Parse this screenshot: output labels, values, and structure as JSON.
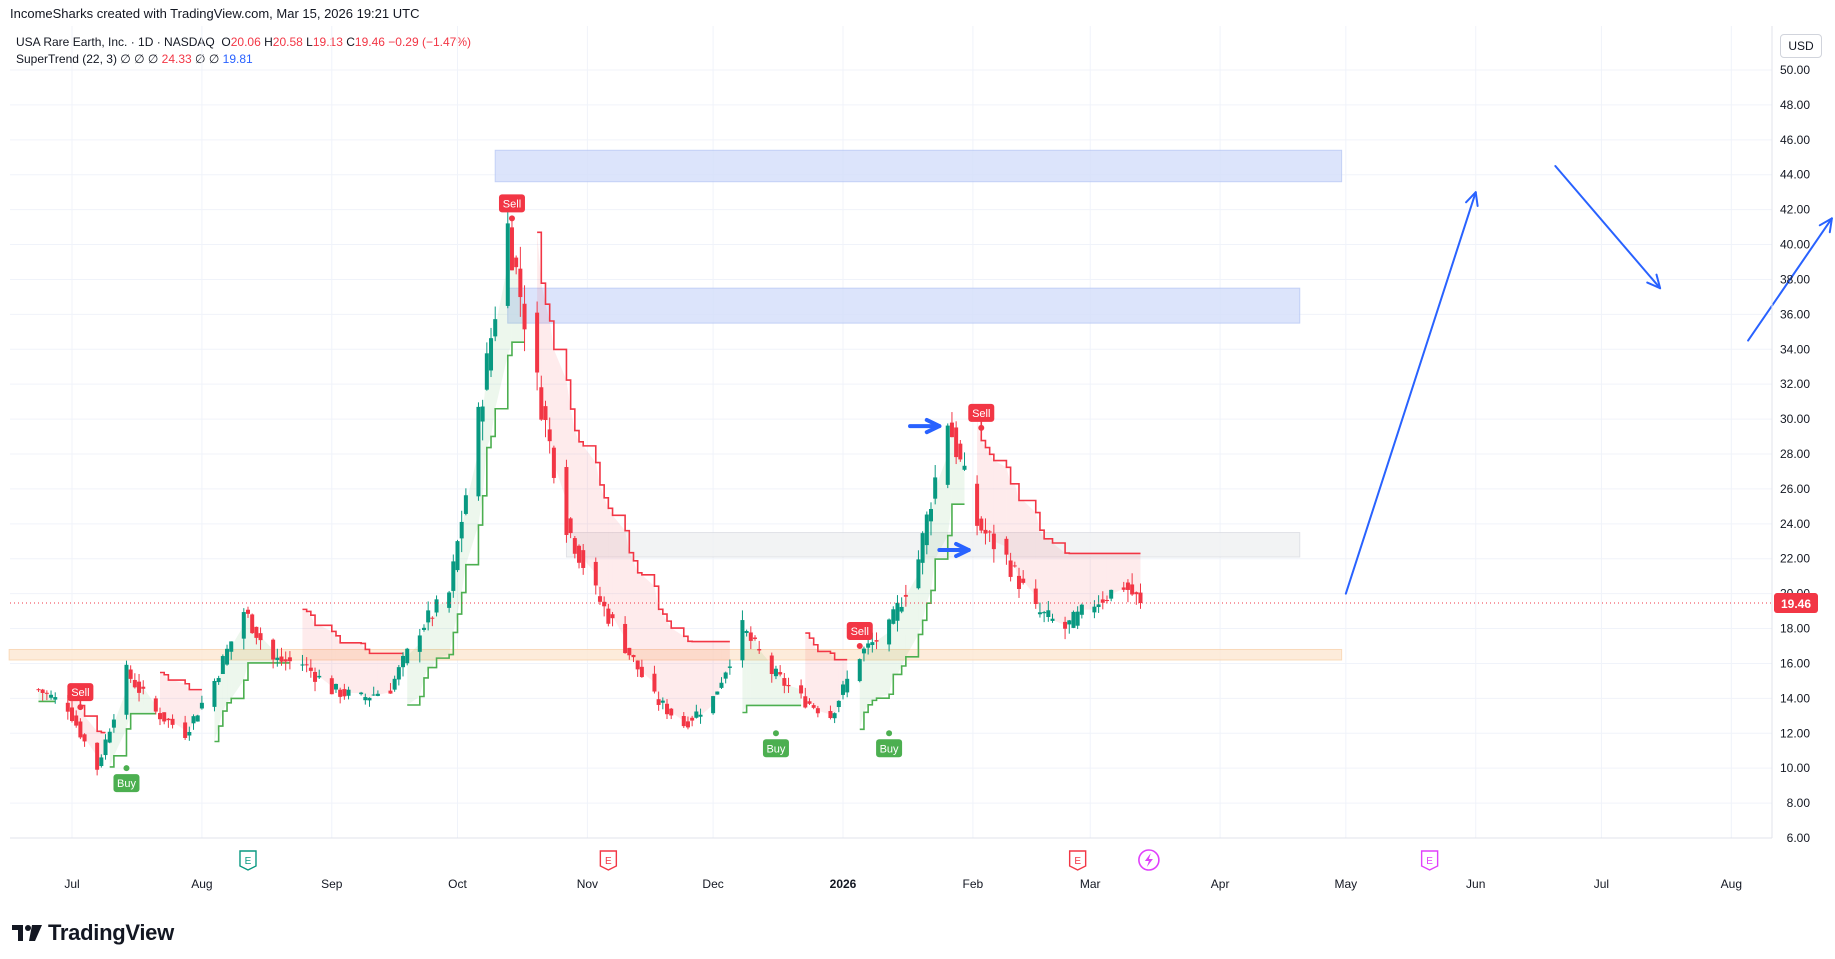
{
  "header": {
    "credit": "IncomeSharks created with TradingView.com, Mar 15, 2026 19:21 UTC"
  },
  "legend": {
    "symbol": "USA Rare Earth, Inc. · 1D · NASDAQ",
    "o_label": "O",
    "o_val": "20.06",
    "h_label": "H",
    "h_val": "20.58",
    "l_label": "L",
    "l_val": "19.13",
    "c_label": "C",
    "c_val": "19.46",
    "change": "−0.29 (−1.47%)",
    "indicator": "SuperTrend (22, 3)",
    "ind_empty": "∅ ∅ ∅",
    "ind_val1": "24.33",
    "ind_empty2": "∅ ∅",
    "ind_val2": "19.81"
  },
  "currency_button": "USD",
  "brand": "TradingView",
  "colors": {
    "up": "#089981",
    "down": "#f23645",
    "supertrend_up": "#4caf50",
    "supertrend_down": "#f23645",
    "arrow": "#2962ff",
    "zone_blue": "#d6e0fb",
    "zone_grey": "#f0f1f3",
    "zone_orange": "#fde9d5",
    "grid": "#f0f3fa",
    "price_line": "#f23645"
  },
  "chart_data": {
    "type": "candlestick",
    "title": "USA Rare Earth, Inc. · 1D · NASDAQ",
    "y_axis": {
      "ticks": [
        "50.00",
        "48.00",
        "46.00",
        "44.00",
        "42.00",
        "40.00",
        "38.00",
        "36.00",
        "34.00",
        "32.00",
        "30.00",
        "28.00",
        "26.00",
        "24.00",
        "22.00",
        "20.00",
        "18.00",
        "16.00",
        "14.00",
        "12.00",
        "10.00",
        "8.00",
        "6.00"
      ],
      "range": [
        5.2,
        51.5
      ],
      "current_price_label": "19.46",
      "current_price": 19.46
    },
    "x_axis": {
      "labels": [
        "Jul",
        "Aug",
        "Sep",
        "Oct",
        "Nov",
        "Dec",
        "2026",
        "Feb",
        "Mar",
        "Apr",
        "May",
        "Jun",
        "Jul",
        "Aug"
      ],
      "bold_labels": [
        "2026"
      ]
    },
    "candles_daily_close_approx": [
      {
        "date": "2025-06-23",
        "close": 14.5
      },
      {
        "date": "2025-06-30",
        "close": 13.5
      },
      {
        "date": "2025-07-07",
        "close": 10.0
      },
      {
        "date": "2025-07-14",
        "close": 15.5
      },
      {
        "date": "2025-07-21",
        "close": 13.2
      },
      {
        "date": "2025-07-28",
        "close": 12.0
      },
      {
        "date": "2025-08-04",
        "close": 15.0
      },
      {
        "date": "2025-08-11",
        "close": 19.0
      },
      {
        "date": "2025-08-18",
        "close": 16.2
      },
      {
        "date": "2025-08-25",
        "close": 16.0
      },
      {
        "date": "2025-09-01",
        "close": 14.5
      },
      {
        "date": "2025-09-08",
        "close": 14.0
      },
      {
        "date": "2025-09-15",
        "close": 14.6
      },
      {
        "date": "2025-09-22",
        "close": 18.0
      },
      {
        "date": "2025-09-29",
        "close": 20.0
      },
      {
        "date": "2025-10-06",
        "close": 30.0
      },
      {
        "date": "2025-10-13",
        "close": 41.0
      },
      {
        "date": "2025-10-20",
        "close": 32.0
      },
      {
        "date": "2025-10-27",
        "close": 24.0
      },
      {
        "date": "2025-11-03",
        "close": 20.0
      },
      {
        "date": "2025-11-10",
        "close": 17.0
      },
      {
        "date": "2025-11-17",
        "close": 14.0
      },
      {
        "date": "2025-11-24",
        "close": 12.5
      },
      {
        "date": "2025-12-01",
        "close": 14.0
      },
      {
        "date": "2025-12-08",
        "close": 18.0
      },
      {
        "date": "2025-12-15",
        "close": 15.5
      },
      {
        "date": "2025-12-22",
        "close": 14.0
      },
      {
        "date": "2025-12-29",
        "close": 13.0
      },
      {
        "date": "2026-01-05",
        "close": 16.5
      },
      {
        "date": "2026-01-12",
        "close": 18.0
      },
      {
        "date": "2026-01-19",
        "close": 22.0
      },
      {
        "date": "2026-01-26",
        "close": 30.0
      },
      {
        "date": "2026-02-02",
        "close": 24.0
      },
      {
        "date": "2026-02-09",
        "close": 22.0
      },
      {
        "date": "2026-02-16",
        "close": 19.0
      },
      {
        "date": "2026-02-23",
        "close": 18.0
      },
      {
        "date": "2026-03-02",
        "close": 19.5
      },
      {
        "date": "2026-03-09",
        "close": 20.5
      },
      {
        "date": "2026-03-13",
        "close": 19.46
      }
    ],
    "supertrend_signals": [
      {
        "label": "Sell",
        "date": "2025-07-03",
        "price": 13.5
      },
      {
        "label": "Buy",
        "date": "2025-07-14",
        "price": 10.0
      },
      {
        "label": "Sell",
        "date": "2025-10-14",
        "price": 41.5
      },
      {
        "label": "Buy",
        "date": "2025-12-16",
        "price": 12.0
      },
      {
        "label": "Sell",
        "date": "2026-01-05",
        "price": 17.0
      },
      {
        "label": "Buy",
        "date": "2026-01-12",
        "price": 12.0
      },
      {
        "label": "Sell",
        "date": "2026-02-03",
        "price": 29.5
      }
    ],
    "zones": [
      {
        "name": "resistance-zone-high",
        "from_date": "2025-10-10",
        "to_date": "2026-04-30",
        "low": 43.6,
        "high": 45.4
      },
      {
        "name": "resistance-zone-mid",
        "from_date": "2025-10-13",
        "to_date": "2026-04-20",
        "low": 35.5,
        "high": 37.5
      },
      {
        "name": "range-zone",
        "from_date": "2025-10-27",
        "to_date": "2026-04-20",
        "low": 22.1,
        "high": 23.5
      },
      {
        "name": "support-zone",
        "from_date": "2025-06-16",
        "to_date": "2026-04-30",
        "low": 16.2,
        "high": 16.8
      }
    ],
    "projection_arrows": [
      {
        "from": {
          "date": "2026-05-01",
          "price": 20.0
        },
        "to": {
          "date": "2026-06-01",
          "price": 43.0
        }
      },
      {
        "from": {
          "date": "2026-06-20",
          "price": 44.5
        },
        "to": {
          "date": "2026-07-15",
          "price": 37.5
        }
      },
      {
        "from": {
          "date": "2026-08-05",
          "price": 34.5
        },
        "to": {
          "date": "2026-08-25",
          "price": 41.5
        }
      }
    ]
  }
}
